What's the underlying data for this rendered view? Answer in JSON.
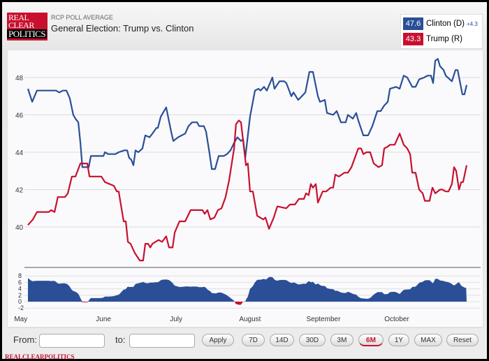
{
  "header": {
    "logo": [
      "REAL",
      "CLEAR",
      "POLITICS"
    ],
    "subtitle": "RCP POLL AVERAGE",
    "title": "General Election: Trump vs. Clinton"
  },
  "legend": [
    {
      "value": "47.6",
      "name": "Clinton (D)",
      "spread": "+4.3",
      "color": "#2a4f96"
    },
    {
      "value": "43.3",
      "name": "Trump (R)",
      "color": "#c8102e"
    }
  ],
  "controls": {
    "from_label": "From:",
    "from_value": "",
    "to_label": "to:",
    "to_value": "",
    "apply": "Apply",
    "ranges": [
      "7D",
      "14D",
      "30D",
      "3M",
      "6M",
      "1Y",
      "MAX"
    ],
    "active_range": "6M",
    "reset": "Reset"
  },
  "footer": "REALCLEARPOLITICS",
  "chart_data": {
    "type": "line",
    "title": "General Election: Trump vs. Clinton",
    "xunit": "days since May 1",
    "ylim": [
      37.5,
      49.5
    ],
    "yticks": [
      "40",
      "42",
      "44",
      "46",
      "48"
    ],
    "spread_yticks": [
      "-2",
      "0",
      "2",
      "4",
      "6",
      "8"
    ],
    "months": [
      {
        "label": "May",
        "day": -3
      },
      {
        "label": "June",
        "day": 31.8
      },
      {
        "label": "July",
        "day": 62.4
      },
      {
        "label": "August",
        "day": 93.5
      },
      {
        "label": "September",
        "day": 124.4
      },
      {
        "label": "October",
        "day": 155.3
      }
    ],
    "series": [
      {
        "name": "Clinton (D)",
        "color": "#2a4f96",
        "points": [
          [
            0,
            47.4
          ],
          [
            1.8,
            46.7
          ],
          [
            3.8,
            47.3
          ],
          [
            11.8,
            47.3
          ],
          [
            13.2,
            47.2
          ],
          [
            14.7,
            47.3
          ],
          [
            16.2,
            47.3
          ],
          [
            17.6,
            46.9
          ],
          [
            19.1,
            46.0
          ],
          [
            20,
            45.8
          ],
          [
            21.2,
            45.6
          ],
          [
            22.1,
            44.5
          ],
          [
            22.9,
            43.2
          ],
          [
            25.6,
            43.2
          ],
          [
            26.5,
            43.8
          ],
          [
            31.8,
            43.8
          ],
          [
            32.4,
            44.0
          ],
          [
            33.8,
            43.9
          ],
          [
            36.8,
            43.9
          ],
          [
            38.2,
            44.0
          ],
          [
            40.6,
            44.1
          ],
          [
            41.8,
            44.1
          ],
          [
            42.6,
            43.7
          ],
          [
            43.5,
            43.6
          ],
          [
            44.4,
            43.3
          ],
          [
            45.3,
            44.1
          ],
          [
            46.5,
            44.0
          ],
          [
            48.2,
            44.2
          ],
          [
            49.4,
            44.9
          ],
          [
            51.2,
            44.8
          ],
          [
            52.4,
            45.0
          ],
          [
            54.1,
            45.3
          ],
          [
            54.7,
            45.3
          ],
          [
            55.9,
            45.9
          ],
          [
            58.2,
            46.4
          ],
          [
            60.3,
            45.1
          ],
          [
            61.2,
            44.6
          ],
          [
            63.2,
            44.8
          ],
          [
            64.7,
            44.9
          ],
          [
            66.2,
            45.0
          ],
          [
            67.6,
            45.4
          ],
          [
            69.1,
            45.6
          ],
          [
            71.2,
            45.6
          ],
          [
            72.1,
            45.4
          ],
          [
            74.1,
            45.4
          ],
          [
            75,
            45.1
          ],
          [
            76.5,
            43.9
          ],
          [
            77.4,
            43.1
          ],
          [
            78.8,
            43.1
          ],
          [
            80.3,
            43.8
          ],
          [
            82.4,
            43.8
          ],
          [
            83.8,
            43.9
          ],
          [
            85.3,
            44.1
          ],
          [
            86.8,
            44.5
          ],
          [
            88.2,
            44.8
          ],
          [
            89.7,
            44.6
          ],
          [
            90.6,
            44.7
          ],
          [
            91.5,
            43.7
          ],
          [
            93.5,
            45.9
          ],
          [
            95.6,
            47.3
          ],
          [
            97.1,
            47.4
          ],
          [
            97.9,
            47.3
          ],
          [
            99.4,
            47.5
          ],
          [
            100.6,
            47.3
          ],
          [
            102.9,
            48.0
          ],
          [
            103.8,
            47.4
          ],
          [
            105.9,
            47.8
          ],
          [
            107.9,
            47.8
          ],
          [
            108.8,
            47.7
          ],
          [
            110.9,
            47.0
          ],
          [
            111.8,
            47.2
          ],
          [
            113.8,
            46.8
          ],
          [
            115.3,
            47.0
          ],
          [
            116.8,
            47.2
          ],
          [
            118.5,
            48.3
          ],
          [
            120,
            48.3
          ],
          [
            122.1,
            47.0
          ],
          [
            122.9,
            46.7
          ],
          [
            125,
            46.8
          ],
          [
            125.9,
            46.1
          ],
          [
            128.5,
            46.0
          ],
          [
            130,
            46.2
          ],
          [
            131.8,
            45.6
          ],
          [
            133.8,
            45.6
          ],
          [
            134.7,
            46.0
          ],
          [
            136.8,
            45.8
          ],
          [
            138.2,
            46.1
          ],
          [
            139.1,
            45.7
          ],
          [
            141.2,
            44.9
          ],
          [
            143.2,
            44.9
          ],
          [
            145,
            45.4
          ],
          [
            147.1,
            46.2
          ],
          [
            148.5,
            46.2
          ],
          [
            150,
            46.5
          ],
          [
            151.5,
            46.7
          ],
          [
            152.4,
            47.4
          ],
          [
            155,
            47.5
          ],
          [
            156.5,
            47.4
          ],
          [
            158.2,
            48.1
          ],
          [
            159.7,
            48.0
          ],
          [
            161.8,
            47.5
          ],
          [
            163.2,
            47.5
          ],
          [
            164.7,
            47.9
          ],
          [
            166.8,
            48.0
          ],
          [
            168.2,
            48.1
          ],
          [
            169.7,
            48.1
          ],
          [
            170.6,
            47.7
          ],
          [
            171.5,
            48.9
          ],
          [
            172.6,
            49.0
          ],
          [
            173.5,
            48.6
          ],
          [
            175,
            48.4
          ],
          [
            175.9,
            48.1
          ],
          [
            178.5,
            47.8
          ],
          [
            180,
            48.4
          ],
          [
            180.9,
            48.4
          ],
          [
            182.9,
            47.1
          ],
          [
            183.8,
            47.1
          ],
          [
            184.7,
            47.6
          ]
        ]
      },
      {
        "name": "Trump (R)",
        "color": "#c8102e",
        "points": [
          [
            0,
            40.1
          ],
          [
            2.1,
            40.4
          ],
          [
            3.8,
            40.8
          ],
          [
            8.8,
            40.8
          ],
          [
            9.7,
            40.9
          ],
          [
            11.2,
            40.8
          ],
          [
            12.6,
            41.6
          ],
          [
            15.6,
            41.6
          ],
          [
            16.8,
            41.8
          ],
          [
            18.5,
            42.7
          ],
          [
            20,
            42.7
          ],
          [
            22.1,
            43.4
          ],
          [
            25,
            43.4
          ],
          [
            25.9,
            42.7
          ],
          [
            30.9,
            42.7
          ],
          [
            32.4,
            42.4
          ],
          [
            36.2,
            42.2
          ],
          [
            37.4,
            41.9
          ],
          [
            38.2,
            41.9
          ],
          [
            40.3,
            40.3
          ],
          [
            41.2,
            40.3
          ],
          [
            42.1,
            39.2
          ],
          [
            43.2,
            39.1
          ],
          [
            45,
            38.6
          ],
          [
            47.1,
            38.2
          ],
          [
            48.5,
            38.2
          ],
          [
            49.4,
            39.1
          ],
          [
            50.6,
            39.1
          ],
          [
            51.5,
            38.9
          ],
          [
            52.4,
            39.1
          ],
          [
            55,
            39.3
          ],
          [
            56.5,
            39.2
          ],
          [
            58.2,
            39.5
          ],
          [
            59.4,
            38.9
          ],
          [
            60.9,
            38.9
          ],
          [
            61.8,
            39.7
          ],
          [
            63.8,
            40.3
          ],
          [
            66.2,
            40.3
          ],
          [
            68.5,
            40.9
          ],
          [
            73.5,
            40.9
          ],
          [
            74.4,
            40.7
          ],
          [
            75.6,
            40.9
          ],
          [
            76.8,
            40.4
          ],
          [
            78.5,
            40.5
          ],
          [
            80,
            40.9
          ],
          [
            81.5,
            41.0
          ],
          [
            83.2,
            41.6
          ],
          [
            84.7,
            42.5
          ],
          [
            86.8,
            44.2
          ],
          [
            87.6,
            45.5
          ],
          [
            88.8,
            45.7
          ],
          [
            89.7,
            45.6
          ],
          [
            91.8,
            43.3
          ],
          [
            92.6,
            43.4
          ],
          [
            93.5,
            41.9
          ],
          [
            94.7,
            41.9
          ],
          [
            96.5,
            40.6
          ],
          [
            99.1,
            40.4
          ],
          [
            100,
            40.5
          ],
          [
            101.5,
            39.9
          ],
          [
            103.5,
            40.5
          ],
          [
            105,
            41.1
          ],
          [
            108.8,
            41.0
          ],
          [
            110.3,
            41.2
          ],
          [
            112.4,
            41.2
          ],
          [
            114.1,
            41.5
          ],
          [
            116.2,
            41.5
          ],
          [
            117.1,
            41.8
          ],
          [
            118.2,
            41.7
          ],
          [
            119.1,
            42.3
          ],
          [
            120,
            42.1
          ],
          [
            121.2,
            42.3
          ],
          [
            122.1,
            41.3
          ],
          [
            124.1,
            41.9
          ],
          [
            125.6,
            41.9
          ],
          [
            127.4,
            42.1
          ],
          [
            128.5,
            42.1
          ],
          [
            129.4,
            42.8
          ],
          [
            130.9,
            42.7
          ],
          [
            133.2,
            42.9
          ],
          [
            134.7,
            42.9
          ],
          [
            136.2,
            43.2
          ],
          [
            139.1,
            44.2
          ],
          [
            140.3,
            44.2
          ],
          [
            141.2,
            43.9
          ],
          [
            142.6,
            44.0
          ],
          [
            144.1,
            44.0
          ],
          [
            145.6,
            43.4
          ],
          [
            147.6,
            43.2
          ],
          [
            149.1,
            43.3
          ],
          [
            150,
            44.2
          ],
          [
            151.5,
            44.3
          ],
          [
            152.4,
            44.4
          ],
          [
            154.4,
            44.4
          ],
          [
            156.5,
            45.0
          ],
          [
            158.2,
            44.4
          ],
          [
            159.7,
            44.2
          ],
          [
            160.9,
            43.9
          ],
          [
            161.8,
            42.9
          ],
          [
            163.2,
            42.9
          ],
          [
            164.7,
            42.0
          ],
          [
            166.2,
            41.8
          ],
          [
            167.1,
            41.4
          ],
          [
            169.1,
            41.4
          ],
          [
            170.3,
            42.1
          ],
          [
            171.5,
            41.8
          ],
          [
            173.5,
            42.0
          ],
          [
            174.4,
            42.0
          ],
          [
            175.9,
            41.9
          ],
          [
            177.1,
            41.9
          ],
          [
            178.5,
            42.3
          ],
          [
            179.4,
            43.2
          ],
          [
            180.3,
            43.0
          ],
          [
            181.5,
            42.0
          ],
          [
            182.4,
            42.4
          ],
          [
            183.2,
            42.4
          ],
          [
            184.7,
            43.3
          ]
        ]
      }
    ]
  }
}
